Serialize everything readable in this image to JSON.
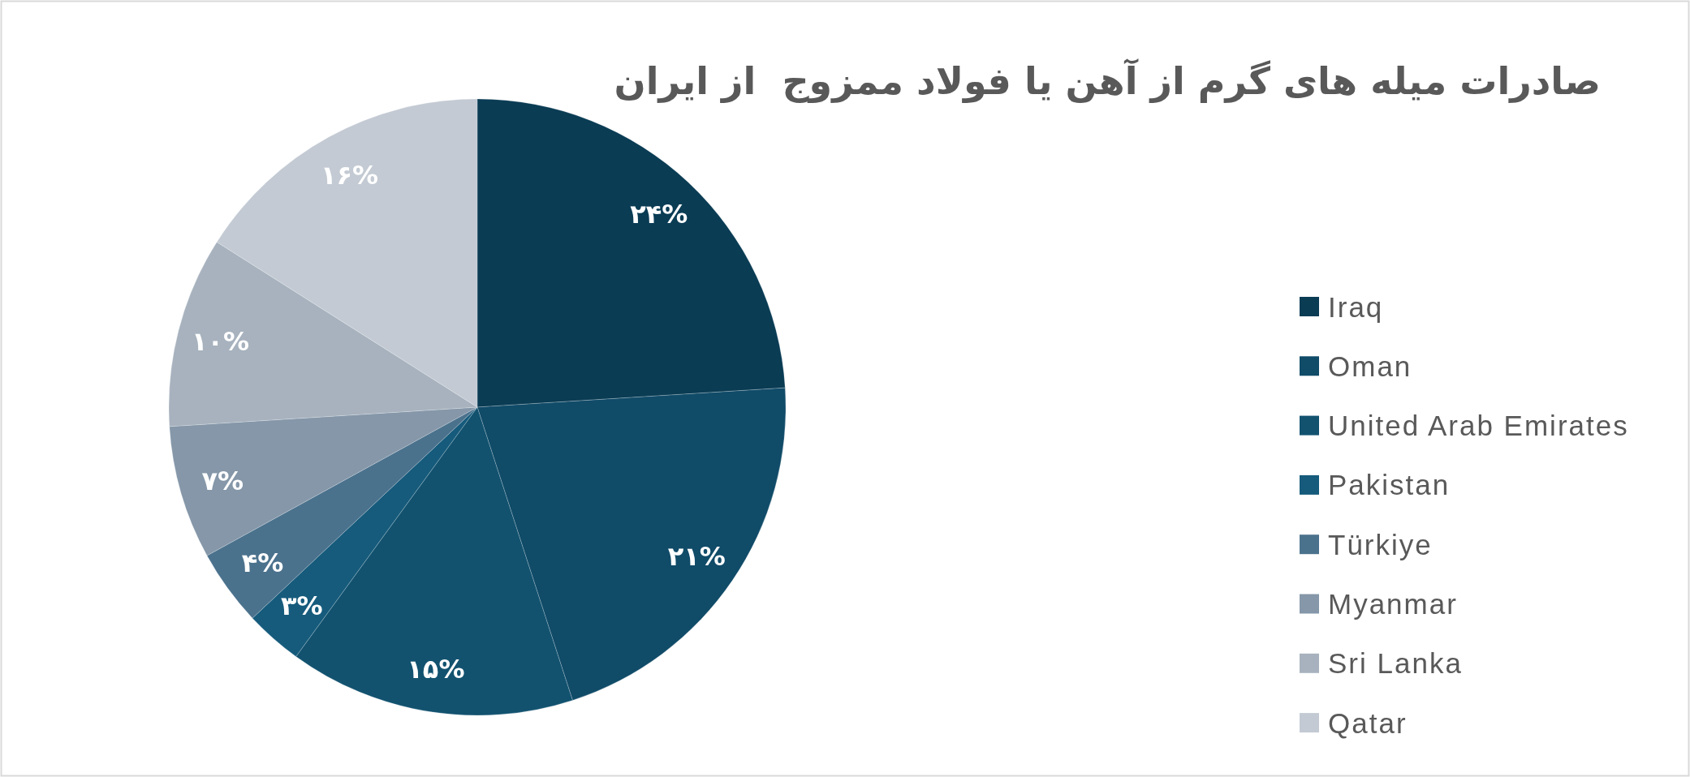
{
  "chart_data": {
    "type": "pie",
    "title": "صادرات میله های گرم از آهن یا فولاد ممزوج  از ایران",
    "categories": [
      "Iraq",
      "Oman",
      "United Arab Emirates",
      "Pakistan",
      "Türkiye",
      "Myanmar",
      "Sri Lanka",
      "Qatar"
    ],
    "values": [
      24,
      21,
      15,
      3,
      4,
      7,
      10,
      16
    ],
    "colors": [
      "#0a3c54",
      "#104b68",
      "#12526f",
      "#165b7c",
      "#4b728d",
      "#8597a9",
      "#a7b2be",
      "#c3cad3"
    ],
    "value_labels": [
      "۲۴%",
      "۲۱%",
      "۱۵%",
      "۳%",
      "۴%",
      "۷%",
      "۱۰%",
      "۱۶%"
    ],
    "legend": "right"
  }
}
